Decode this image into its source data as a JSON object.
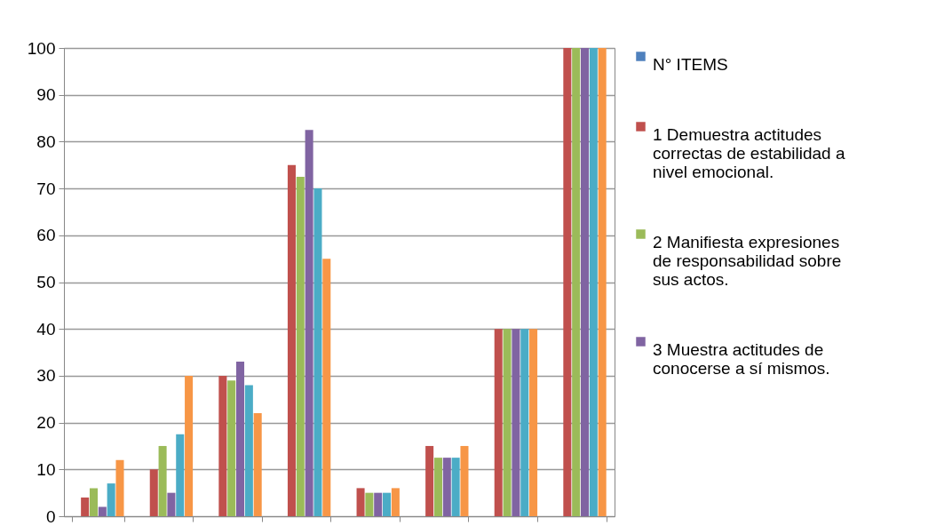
{
  "chart_data": {
    "type": "bar",
    "categories": [
      null,
      null,
      null,
      null,
      null,
      null,
      null,
      null
    ],
    "series": [
      {
        "name": "N° ITEMS",
        "color": "#4f81bd",
        "values": [
          0,
          0,
          0,
          0,
          0,
          0,
          0,
          0
        ]
      },
      {
        "name": "1 Demuestra actitudes correctas de estabilidad a nivel emocional.",
        "color": "#c0504d",
        "values": [
          4,
          10,
          30,
          75,
          6,
          15,
          40,
          100
        ]
      },
      {
        "name": "2 Manifiesta expresiones de responsabilidad sobre sus actos.",
        "color": "#9bbb59",
        "values": [
          6,
          15,
          29,
          72.5,
          5,
          12.5,
          40,
          100
        ]
      },
      {
        "name": "3 Muestra actitudes de conocerse a sí mismos.",
        "color": "#8064a2",
        "values": [
          2,
          5,
          33,
          82.5,
          5,
          12.5,
          40,
          100
        ]
      },
      {
        "color": "#4bacc6",
        "values": [
          7,
          17.5,
          28,
          70,
          5,
          12.5,
          40,
          100
        ]
      },
      {
        "color": "#f79646",
        "values": [
          12,
          30,
          22,
          55,
          6,
          15,
          40,
          100
        ]
      }
    ],
    "ylim": [
      0,
      100
    ],
    "yticks": [
      0,
      10,
      20,
      30,
      40,
      50,
      60,
      70,
      80,
      90,
      100
    ],
    "grid": "y",
    "legend": "right",
    "tick_labels": "y"
  }
}
